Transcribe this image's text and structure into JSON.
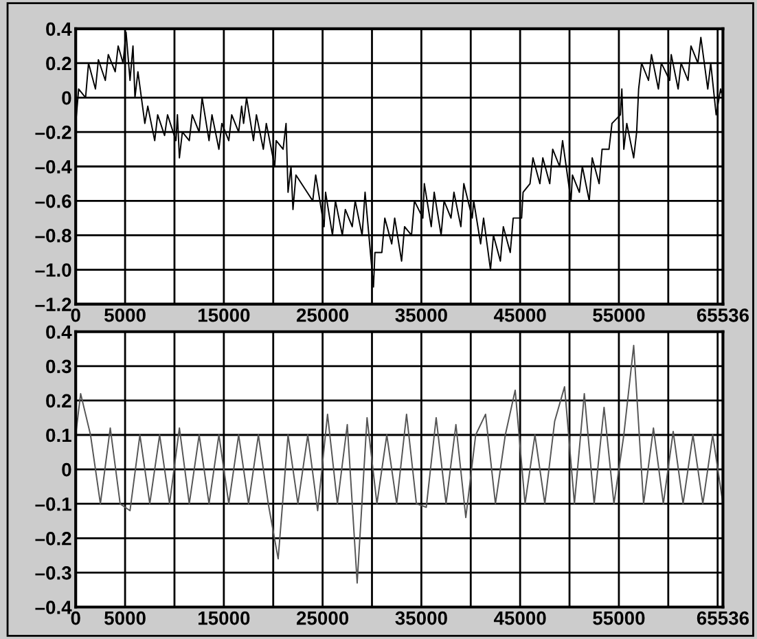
{
  "chart_data": [
    {
      "type": "line",
      "xlim": [
        0,
        65536
      ],
      "ylim": [
        -1.2,
        0.4
      ],
      "xticks": [
        0,
        5000,
        {
          "value": 10000,
          "label": null
        },
        15000,
        {
          "value": 20000,
          "label": null
        },
        25000,
        {
          "value": 30000,
          "label": null
        },
        35000,
        {
          "value": 40000,
          "label": null
        },
        45000,
        {
          "value": 50000,
          "label": null
        },
        55000,
        {
          "value": 60000,
          "label": null
        },
        {
          "value": 65000,
          "label": null
        },
        65536
      ],
      "yticks": [
        0.4,
        0.2,
        0,
        {
          "value": -0.2,
          "label": "–0.2"
        },
        {
          "value": -0.4,
          "label": "–0.4"
        },
        {
          "value": -0.6,
          "label": "–0.6"
        },
        {
          "value": -0.8,
          "label": "–0.8"
        },
        {
          "value": -1.0,
          "label": "–1.0"
        },
        {
          "value": -1.2,
          "label": "–1.2"
        }
      ],
      "grid": true,
      "series": [
        {
          "color": "#000000",
          "x": [
            0,
            300,
            1000,
            1300,
            2000,
            2300,
            3000,
            3300,
            4000,
            4300,
            4800,
            5100,
            5500,
            5800,
            6000,
            6300,
            7000,
            7300,
            8000,
            8300,
            9000,
            9300,
            10150,
            10300,
            10500,
            10800,
            11500,
            11800,
            12500,
            12800,
            13500,
            13800,
            14500,
            14800,
            15500,
            15800,
            16500,
            16800,
            17000,
            17300,
            18000,
            18300,
            19000,
            19300,
            20150,
            20300,
            21000,
            21300,
            21500,
            21800,
            22000,
            22300,
            24000,
            24300,
            25150,
            25300,
            26000,
            26300,
            27000,
            27300,
            28000,
            28300,
            29000,
            29300,
            30150,
            30300,
            31000,
            31300,
            32000,
            32300,
            33000,
            33300,
            34000,
            34300,
            35150,
            35300,
            36000,
            36300,
            37000,
            37300,
            38000,
            38300,
            39000,
            39300,
            40150,
            40300,
            41000,
            41300,
            42000,
            42300,
            43000,
            43300,
            44000,
            44300,
            45150,
            45300,
            46000,
            46300,
            47000,
            47300,
            48000,
            48300,
            49000,
            49300,
            50150,
            50300,
            51000,
            51300,
            52000,
            52300,
            53000,
            53300,
            54000,
            54300,
            55150,
            55300,
            55500,
            55800,
            56500,
            56800,
            57000,
            57300,
            58000,
            58300,
            59000,
            59300,
            60150,
            60300,
            61000,
            61300,
            62000,
            62300,
            63000,
            63300,
            64000,
            64300,
            64850,
            65300,
            65536
          ],
          "values": [
            -0.15,
            0.05,
            0.0,
            0.2,
            0.05,
            0.22,
            0.1,
            0.25,
            0.15,
            0.3,
            0.2,
            0.38,
            0.1,
            0.3,
            0.0,
            0.15,
            -0.15,
            -0.05,
            -0.25,
            -0.1,
            -0.22,
            -0.1,
            -0.25,
            -0.1,
            -0.35,
            -0.2,
            -0.25,
            -0.1,
            -0.2,
            0.0,
            -0.25,
            -0.1,
            -0.3,
            -0.15,
            -0.25,
            -0.1,
            -0.2,
            -0.05,
            -0.15,
            0.0,
            -0.25,
            -0.1,
            -0.3,
            -0.15,
            -0.4,
            -0.25,
            -0.3,
            -0.15,
            -0.55,
            -0.4,
            -0.65,
            -0.45,
            -0.6,
            -0.45,
            -0.75,
            -0.55,
            -0.8,
            -0.6,
            -0.8,
            -0.65,
            -0.75,
            -0.6,
            -0.8,
            -0.55,
            -1.1,
            -0.9,
            -0.9,
            -0.7,
            -0.85,
            -0.7,
            -0.95,
            -0.75,
            -0.8,
            -0.6,
            -0.7,
            -0.5,
            -0.75,
            -0.55,
            -0.8,
            -0.6,
            -0.7,
            -0.55,
            -0.75,
            -0.5,
            -0.7,
            -0.6,
            -0.85,
            -0.7,
            -1.0,
            -0.8,
            -0.95,
            -0.75,
            -0.9,
            -0.7,
            -0.7,
            -0.55,
            -0.5,
            -0.35,
            -0.5,
            -0.35,
            -0.5,
            -0.3,
            -0.4,
            -0.25,
            -0.6,
            -0.45,
            -0.55,
            -0.4,
            -0.6,
            -0.35,
            -0.5,
            -0.3,
            -0.3,
            -0.15,
            -0.1,
            0.05,
            -0.3,
            -0.15,
            -0.35,
            -0.2,
            0.05,
            0.2,
            0.1,
            0.25,
            0.05,
            0.2,
            0.1,
            0.25,
            0.05,
            0.2,
            0.1,
            0.3,
            0.2,
            0.35,
            0.05,
            0.2,
            -0.1,
            0.05,
            0.0
          ]
        }
      ]
    },
    {
      "type": "line",
      "xlim": [
        0,
        65536
      ],
      "ylim": [
        -0.4,
        0.4
      ],
      "xticks": [
        0,
        5000,
        {
          "value": 10000,
          "label": null
        },
        15000,
        {
          "value": 20000,
          "label": null
        },
        25000,
        {
          "value": 30000,
          "label": null
        },
        35000,
        {
          "value": 40000,
          "label": null
        },
        45000,
        {
          "value": 50000,
          "label": null
        },
        55000,
        {
          "value": 60000,
          "label": null
        },
        {
          "value": 65000,
          "label": null
        },
        65536
      ],
      "yticks": [
        0.4,
        0.3,
        0.2,
        0.1,
        0,
        {
          "value": -0.1,
          "label": "–0.1"
        },
        {
          "value": -0.2,
          "label": "–0.2"
        },
        {
          "value": -0.3,
          "label": "–0.3"
        },
        {
          "value": -0.4,
          "label": "–0.4"
        }
      ],
      "grid": true,
      "series": [
        {
          "color": "#555555",
          "x": [
            0,
            500,
            1500,
            2500,
            3500,
            4500,
            5500,
            6500,
            7500,
            8500,
            9500,
            10500,
            11500,
            12500,
            13500,
            14500,
            15500,
            16500,
            17500,
            18500,
            19500,
            20500,
            21500,
            22500,
            23500,
            24500,
            25500,
            26500,
            27500,
            28500,
            29500,
            30500,
            31500,
            32500,
            33500,
            34500,
            35500,
            36500,
            37500,
            38500,
            39500,
            40500,
            41500,
            42500,
            43500,
            44500,
            45500,
            46500,
            47500,
            48500,
            49500,
            50500,
            51500,
            52500,
            53500,
            54500,
            55500,
            56500,
            57500,
            58500,
            59500,
            60500,
            61500,
            62500,
            63500,
            64500,
            65536
          ],
          "values": [
            0.1,
            0.22,
            0.1,
            -0.1,
            0.12,
            -0.1,
            -0.12,
            0.1,
            -0.1,
            0.1,
            -0.1,
            0.12,
            -0.1,
            0.1,
            -0.1,
            0.1,
            -0.1,
            0.1,
            -0.1,
            0.1,
            -0.1,
            -0.26,
            0.1,
            -0.1,
            0.1,
            -0.12,
            0.16,
            -0.1,
            0.13,
            -0.33,
            0.15,
            -0.1,
            0.1,
            -0.1,
            0.16,
            -0.1,
            -0.11,
            0.15,
            -0.1,
            0.13,
            -0.14,
            0.1,
            0.16,
            -0.1,
            0.1,
            0.23,
            -0.1,
            0.1,
            -0.1,
            0.14,
            0.24,
            -0.1,
            0.22,
            -0.1,
            0.18,
            -0.1,
            0.1,
            0.36,
            -0.1,
            0.12,
            -0.1,
            0.11,
            -0.1,
            0.1,
            -0.1,
            0.1,
            -0.1
          ]
        }
      ]
    }
  ]
}
